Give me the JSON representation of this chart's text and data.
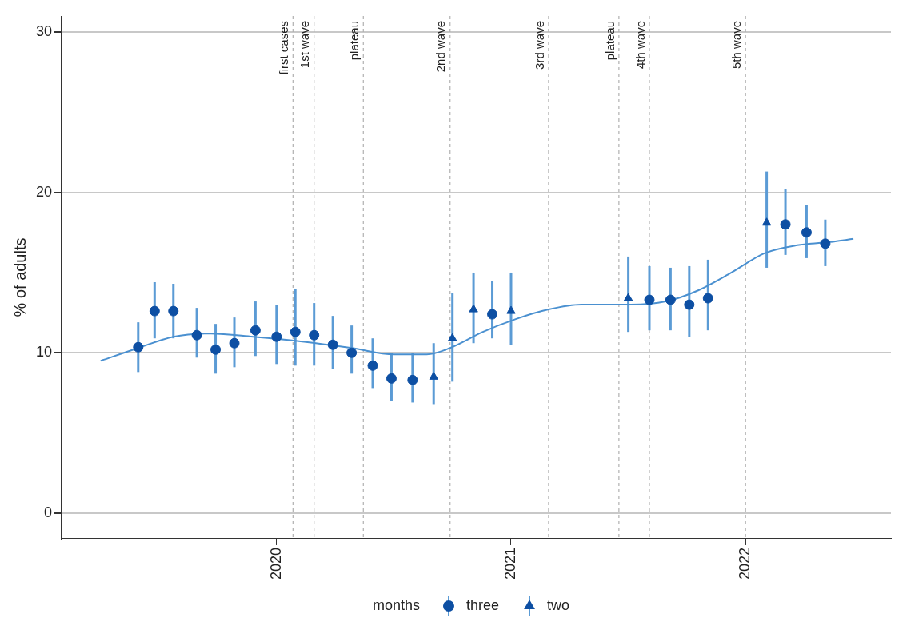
{
  "chart_data": {
    "type": "scatter",
    "ylabel": "% of adults",
    "legend_title": "months",
    "legend": "bottom",
    "grid": "y",
    "xlim": [
      2019.08,
      2022.62
    ],
    "xticks": [
      2020,
      2021,
      2022
    ],
    "ylim": [
      -1.6,
      31
    ],
    "yticks": [
      0,
      10,
      20,
      30
    ],
    "series": [
      {
        "name": "three",
        "type": "scatter",
        "marker": "circle",
        "color": "#0d4fa3",
        "x": [
          2019.41,
          2019.48,
          2019.56,
          2019.66,
          2019.74,
          2019.82,
          2019.91,
          2020.0,
          2020.08,
          2020.16,
          2020.24,
          2020.32,
          2020.41,
          2020.49,
          2020.58,
          2020.92,
          2021.59,
          2021.68,
          2021.76,
          2021.84,
          2022.17,
          2022.26,
          2022.34
        ],
        "values": [
          10.35,
          12.6,
          12.6,
          11.1,
          10.2,
          10.6,
          11.4,
          11.0,
          11.3,
          11.1,
          10.5,
          10.0,
          9.2,
          8.4,
          8.3,
          12.4,
          13.3,
          13.3,
          13.0,
          13.4,
          18.0,
          17.5,
          16.8
        ],
        "errors": [
          [
            8.8,
            11.9
          ],
          [
            10.9,
            14.4
          ],
          [
            10.9,
            14.3
          ],
          [
            9.7,
            12.8
          ],
          [
            8.7,
            11.8
          ],
          [
            9.1,
            12.2
          ],
          [
            9.8,
            13.2
          ],
          [
            9.3,
            13.0
          ],
          [
            9.2,
            14.0
          ],
          [
            9.2,
            13.1
          ],
          [
            9.0,
            12.3
          ],
          [
            8.7,
            11.7
          ],
          [
            7.8,
            10.9
          ],
          [
            7.0,
            10.0
          ],
          [
            6.9,
            10.0
          ],
          [
            10.9,
            14.5
          ],
          [
            11.4,
            15.4
          ],
          [
            11.4,
            15.3
          ],
          [
            11.0,
            15.4
          ],
          [
            11.4,
            15.8
          ],
          [
            16.1,
            20.2
          ],
          [
            15.9,
            19.2
          ],
          [
            15.4,
            18.3
          ]
        ]
      },
      {
        "name": "two",
        "type": "scatter",
        "marker": "triangle",
        "color": "#0d4fa3",
        "x": [
          2020.67,
          2020.75,
          2020.84,
          2021.0,
          2021.5,
          2022.09
        ],
        "values": [
          8.5,
          10.9,
          12.7,
          12.6,
          13.4,
          18.1
        ],
        "errors": [
          [
            6.8,
            10.6
          ],
          [
            8.2,
            13.7
          ],
          [
            10.6,
            15.0
          ],
          [
            10.5,
            15.0
          ],
          [
            11.3,
            16.0
          ],
          [
            15.3,
            21.3
          ]
        ]
      },
      {
        "type": "line",
        "marker": "none",
        "color": "#4a90d0",
        "x": [
          2019.25,
          2019.41,
          2019.56,
          2019.72,
          2019.9,
          2020.11,
          2020.32,
          2020.5,
          2020.64,
          2020.74,
          2020.88,
          2021.02,
          2021.16,
          2021.3,
          2021.51,
          2021.66,
          2021.8,
          2021.94,
          2022.08,
          2022.22,
          2022.36,
          2022.46
        ],
        "values": [
          9.5,
          10.3,
          11.0,
          11.2,
          11.0,
          10.7,
          10.3,
          9.9,
          9.9,
          10.3,
          11.3,
          12.1,
          12.7,
          13.0,
          13.0,
          13.2,
          13.9,
          15.0,
          16.2,
          16.7,
          16.9,
          17.1
        ]
      }
    ],
    "ref_lines": [
      {
        "axis": "x",
        "value": 2020.07,
        "label": "first cases",
        "line_style": "dashed",
        "color": "#b0b0b0"
      },
      {
        "axis": "x",
        "value": 2020.16,
        "label": "1st wave",
        "line_style": "dashed",
        "color": "#b0b0b0"
      },
      {
        "axis": "x",
        "value": 2020.37,
        "label": "plateau",
        "line_style": "dashed",
        "color": "#b0b0b0"
      },
      {
        "axis": "x",
        "value": 2020.74,
        "label": "2nd wave",
        "line_style": "dashed",
        "color": "#b0b0b0"
      },
      {
        "axis": "x",
        "value": 2021.16,
        "label": "3rd wave",
        "line_style": "dashed",
        "color": "#b0b0b0"
      },
      {
        "axis": "x",
        "value": 2021.46,
        "label": "plateau",
        "line_style": "dashed",
        "color": "#b0b0b0"
      },
      {
        "axis": "x",
        "value": 2021.59,
        "label": "4th wave",
        "line_style": "dashed",
        "color": "#b0b0b0"
      },
      {
        "axis": "x",
        "value": 2022.0,
        "label": "5th wave",
        "line_style": "dashed",
        "color": "#b0b0b0"
      }
    ]
  }
}
